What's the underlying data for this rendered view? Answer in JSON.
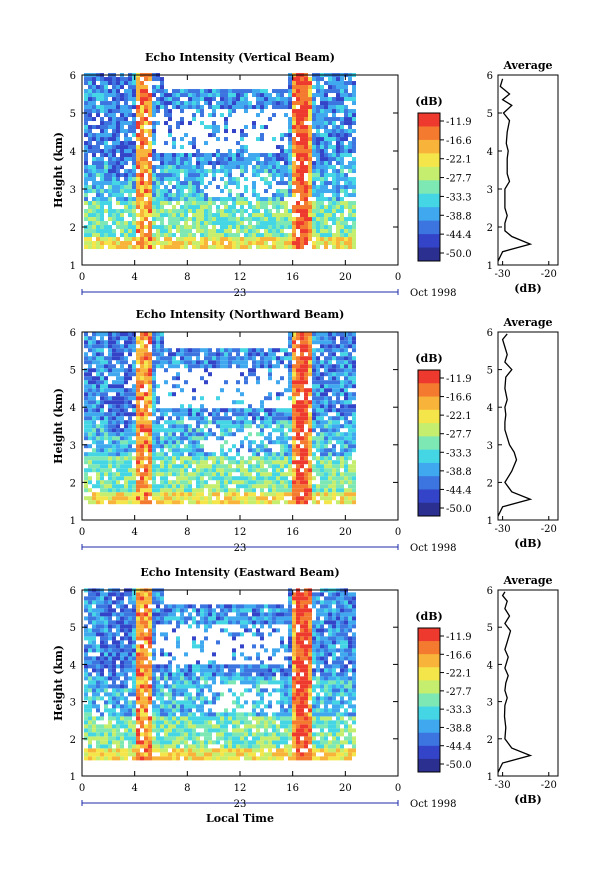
{
  "chart_data": [
    {
      "type": "heatmap",
      "title": "Echo Intensity (Vertical Beam)",
      "xlabel": "",
      "ylabel": "Height (km)",
      "xlim": [
        0,
        24
      ],
      "ylim": [
        1,
        6
      ],
      "xticks": [
        "0",
        "4",
        "8",
        "12",
        "16",
        "20",
        "0"
      ],
      "yticks": [
        "1",
        "2",
        "3",
        "4",
        "5",
        "6"
      ],
      "date_label": "Oct 1998",
      "day_label": "23",
      "colorbar": {
        "unit": "(dB)",
        "levels": [
          "-11.9",
          "-16.6",
          "-22.1",
          "-27.7",
          "-33.3",
          "-38.8",
          "-44.4",
          "-50.0"
        ]
      },
      "profile": {
        "title": "Average",
        "xlabel": "(dB)",
        "xticks": [
          "-30",
          "-20"
        ],
        "yticks": [
          "1",
          "2",
          "3",
          "4",
          "5",
          "6"
        ],
        "x": [
          -31,
          -30,
          -24,
          -28,
          -29.5,
          -29.5,
          -29,
          -29.5,
          -29.5,
          -29.5,
          -28.5,
          -29,
          -29,
          -29,
          -28.8,
          -29.2,
          -29,
          -28.5,
          -29.8,
          -28,
          -30,
          -28.5,
          -30.5,
          -30
        ],
        "y": [
          1.1,
          1.35,
          1.55,
          1.75,
          1.9,
          2.1,
          2.3,
          2.5,
          2.8,
          3.0,
          3.2,
          3.4,
          3.6,
          3.8,
          4.0,
          4.2,
          4.5,
          4.8,
          5.0,
          5.2,
          5.35,
          5.5,
          5.7,
          5.9
        ]
      }
    },
    {
      "type": "heatmap",
      "title": "Echo Intensity (Northward Beam)",
      "xlabel": "",
      "ylabel": "Height (km)",
      "xlim": [
        0,
        24
      ],
      "ylim": [
        1,
        6
      ],
      "xticks": [
        "0",
        "4",
        "8",
        "12",
        "16",
        "20",
        "0"
      ],
      "yticks": [
        "1",
        "2",
        "3",
        "4",
        "5",
        "6"
      ],
      "date_label": "Oct 1998",
      "day_label": "23",
      "colorbar": {
        "unit": "(dB)",
        "levels": [
          "-11.9",
          "-16.6",
          "-22.1",
          "-27.7",
          "-33.3",
          "-38.8",
          "-44.4",
          "-50.0"
        ]
      },
      "profile": {
        "title": "Average",
        "xlabel": "(dB)",
        "xticks": [
          "-30",
          "-20"
        ],
        "yticks": [
          "1",
          "2",
          "3",
          "4",
          "5",
          "6"
        ],
        "x": [
          -31,
          -30,
          -24,
          -28,
          -29.5,
          -28,
          -27,
          -27.5,
          -28.5,
          -29,
          -29.5,
          -29.5,
          -29.3,
          -29.5,
          -29,
          -29.5,
          -29.3,
          -28,
          -29.5,
          -29,
          -29.5,
          -30,
          -29
        ],
        "y": [
          1.1,
          1.35,
          1.55,
          1.75,
          2.0,
          2.3,
          2.6,
          2.8,
          3.0,
          3.2,
          3.4,
          3.6,
          3.8,
          4.0,
          4.2,
          4.5,
          4.8,
          5.0,
          5.2,
          5.4,
          5.6,
          5.8,
          5.95
        ]
      }
    },
    {
      "type": "heatmap",
      "title": "Echo Intensity (Eastward Beam)",
      "xlabel": "Local Time",
      "ylabel": "Height (km)",
      "xlim": [
        0,
        24
      ],
      "ylim": [
        1,
        6
      ],
      "xticks": [
        "0",
        "4",
        "8",
        "12",
        "16",
        "20",
        "0"
      ],
      "yticks": [
        "1",
        "2",
        "3",
        "4",
        "5",
        "6"
      ],
      "date_label": "Oct 1998",
      "day_label": "23",
      "colorbar": {
        "unit": "(dB)",
        "levels": [
          "-11.9",
          "-16.6",
          "-22.1",
          "-27.7",
          "-33.3",
          "-38.8",
          "-44.4",
          "-50.0"
        ]
      },
      "profile": {
        "title": "Average",
        "xlabel": "(dB)",
        "xticks": [
          "-30",
          "-20"
        ],
        "yticks": [
          "1",
          "2",
          "3",
          "4",
          "5",
          "6"
        ],
        "x": [
          -31,
          -30,
          -24,
          -28,
          -29.5,
          -29.3,
          -29.6,
          -29.5,
          -29,
          -29.5,
          -29.3,
          -28.8,
          -29.5,
          -28.8,
          -29.5,
          -29,
          -28.3,
          -29.5,
          -28.5,
          -29.5,
          -29,
          -30,
          -29.5
        ],
        "y": [
          1.1,
          1.35,
          1.55,
          1.75,
          2.0,
          2.3,
          2.6,
          2.9,
          3.1,
          3.3,
          3.5,
          3.7,
          3.9,
          4.2,
          4.4,
          4.6,
          4.9,
          5.1,
          5.3,
          5.5,
          5.7,
          5.85,
          5.95
        ]
      }
    }
  ],
  "colors": {
    "scale": [
      "#2b2f8f",
      "#3344c8",
      "#3c74e0",
      "#3fa8ee",
      "#45d6e6",
      "#7ee8b4",
      "#c6ee6e",
      "#f4e64a",
      "#f8b43a",
      "#f47a30",
      "#ee3a2e"
    ],
    "axis": "#000000",
    "date_bar": "#1c2aa8"
  }
}
